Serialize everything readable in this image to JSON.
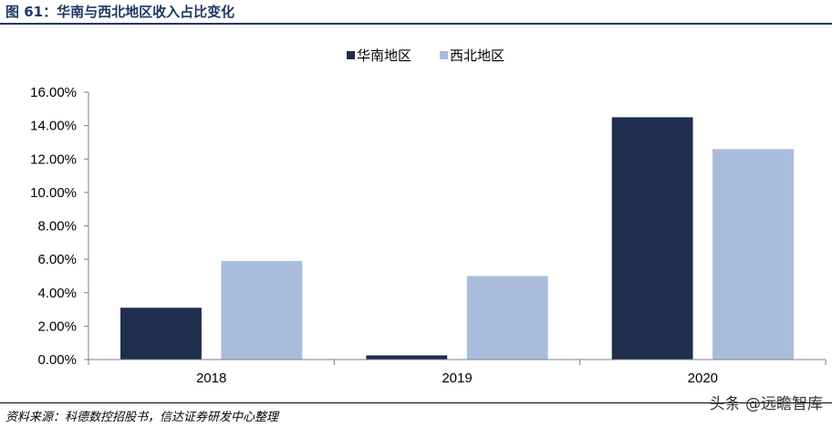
{
  "figure": {
    "title": "图 61：华南与西北地区收入占比变化",
    "source": "资料来源：科德数控招股书，信达证券研发中心整理",
    "watermark": "头条 @远瞻智库"
  },
  "chart_data": {
    "type": "bar",
    "title": "",
    "xlabel": "",
    "ylabel": "",
    "categories": [
      "2018",
      "2019",
      "2020"
    ],
    "series": [
      {
        "name": "华南地区",
        "color": "#1f2d4e",
        "values": [
          3.1,
          0.25,
          14.5
        ]
      },
      {
        "name": "西北地区",
        "color": "#a9bcdc",
        "values": [
          5.9,
          5.0,
          12.6
        ]
      }
    ],
    "ylim": [
      0,
      16
    ],
    "yticks": [
      0,
      2,
      4,
      6,
      8,
      10,
      12,
      14,
      16
    ],
    "ytick_labels": [
      "0.00%",
      "2.00%",
      "4.00%",
      "6.00%",
      "8.00%",
      "10.00%",
      "12.00%",
      "14.00%",
      "16.00%"
    ],
    "grid": false,
    "legend_position": "top-center"
  }
}
